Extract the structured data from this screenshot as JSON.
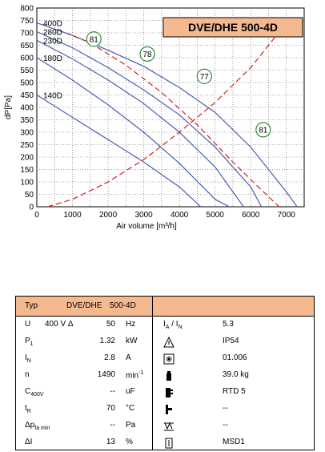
{
  "chart_data": {
    "type": "line",
    "title": "DVE/DHE 500-4D",
    "xlabel": "Air volume [m³/h]",
    "ylabel": "dP[Pa]",
    "xlim": [
      0,
      7500
    ],
    "ylim": [
      0,
      800
    ],
    "xticks": [
      0,
      1000,
      2000,
      3000,
      4000,
      5000,
      6000,
      7000
    ],
    "yticks": [
      0,
      50,
      100,
      150,
      200,
      250,
      300,
      350,
      400,
      450,
      500,
      550,
      600,
      650,
      700,
      750,
      800
    ],
    "grid": true,
    "series": [
      {
        "name": "400D",
        "color": "#4a5fb0",
        "points": [
          [
            0,
            740
          ],
          [
            1000,
            690
          ],
          [
            2000,
            630
          ],
          [
            3000,
            565
          ],
          [
            4000,
            480
          ],
          [
            5000,
            380
          ],
          [
            6000,
            240
          ],
          [
            7000,
            60
          ],
          [
            7300,
            0
          ]
        ]
      },
      {
        "name": "280D",
        "color": "#4a5fb0",
        "points": [
          [
            0,
            705
          ],
          [
            1000,
            640
          ],
          [
            2000,
            560
          ],
          [
            3000,
            470
          ],
          [
            4000,
            370
          ],
          [
            5000,
            240
          ],
          [
            6000,
            80
          ],
          [
            6300,
            0
          ]
        ]
      },
      {
        "name": "230D",
        "color": "#4a5fb0",
        "points": [
          [
            0,
            670
          ],
          [
            1000,
            595
          ],
          [
            2000,
            510
          ],
          [
            3000,
            415
          ],
          [
            4000,
            300
          ],
          [
            5000,
            160
          ],
          [
            5800,
            0
          ]
        ]
      },
      {
        "name": "180D",
        "color": "#4a5fb0",
        "points": [
          [
            0,
            600
          ],
          [
            1000,
            510
          ],
          [
            2000,
            410
          ],
          [
            3000,
            300
          ],
          [
            4000,
            175
          ],
          [
            5000,
            30
          ],
          [
            5400,
            0
          ]
        ]
      },
      {
        "name": "140D",
        "color": "#4a5fb0",
        "points": [
          [
            0,
            450
          ],
          [
            1000,
            360
          ],
          [
            2000,
            270
          ],
          [
            3000,
            180
          ],
          [
            4000,
            80
          ],
          [
            4600,
            0
          ]
        ]
      },
      {
        "name": "",
        "color": "#d62020",
        "dashed": true,
        "points": [
          [
            300,
            0
          ],
          [
            1000,
            30
          ],
          [
            2000,
            100
          ],
          [
            3000,
            190
          ],
          [
            4000,
            300
          ],
          [
            5000,
            420
          ],
          [
            6000,
            560
          ],
          [
            7000,
            740
          ]
        ]
      },
      {
        "name": "",
        "color": "#d62020",
        "dashed": true,
        "points": [
          [
            800,
            700
          ],
          [
            1500,
            660
          ],
          [
            2500,
            570
          ],
          [
            3500,
            460
          ],
          [
            4500,
            330
          ],
          [
            5500,
            180
          ],
          [
            6500,
            40
          ],
          [
            6800,
            0
          ]
        ]
      }
    ],
    "efficiency_labels": [
      {
        "text": "81",
        "x": 1600,
        "y": 675
      },
      {
        "text": "78",
        "x": 3100,
        "y": 615
      },
      {
        "text": "77",
        "x": 4700,
        "y": 525
      },
      {
        "text": "81",
        "x": 6350,
        "y": 310
      }
    ]
  },
  "spec_table": {
    "header": {
      "label": "Typ",
      "value": "DVE/DHE",
      "value2": "500-4D"
    },
    "rows": [
      {
        "symbol": "U",
        "mid": "400 V Δ",
        "value": "50",
        "unit": "Hz",
        "right_symbol": "I_A / I_N",
        "right_value": "5.3",
        "icon": "ratio-icon"
      },
      {
        "symbol": "P1",
        "mid": "",
        "value": "1.32",
        "unit": "kW",
        "right_symbol": "",
        "right_value": "IP54",
        "icon": "protection-icon"
      },
      {
        "symbol": "IN",
        "mid": "",
        "value": "2.8",
        "unit": "A",
        "right_symbol": "",
        "right_value": "01.006",
        "icon": "wiring-icon"
      },
      {
        "symbol": "n",
        "mid": "",
        "value": "1490",
        "unit": "min⁻¹",
        "right_symbol": "",
        "right_value": "39.0 kg",
        "icon": "weight-icon"
      },
      {
        "symbol": "C400V",
        "mid": "",
        "value": "--",
        "unit": "uF",
        "right_symbol": "",
        "right_value": "RTD 5",
        "icon": "regulator-icon"
      },
      {
        "symbol": "tR",
        "mid": "",
        "value": "70",
        "unit": "°C",
        "right_symbol": "",
        "right_value": "--",
        "icon": "thermal-icon"
      },
      {
        "symbol": "Δpfa min",
        "mid": "",
        "value": "--",
        "unit": "Pa",
        "right_symbol": "",
        "right_value": "--",
        "icon": "pressure-switch-icon"
      },
      {
        "symbol": "ΔI",
        "mid": "",
        "value": "13",
        "unit": "%",
        "right_symbol": "",
        "right_value": "MSD1",
        "icon": "switch-icon"
      }
    ]
  },
  "colors": {
    "title_bg": "#f5b98f",
    "table_head_bg": "#f5b98f",
    "curve": "#4a5fb0",
    "red": "#d62020",
    "label_ring": "#2e8b3a"
  }
}
